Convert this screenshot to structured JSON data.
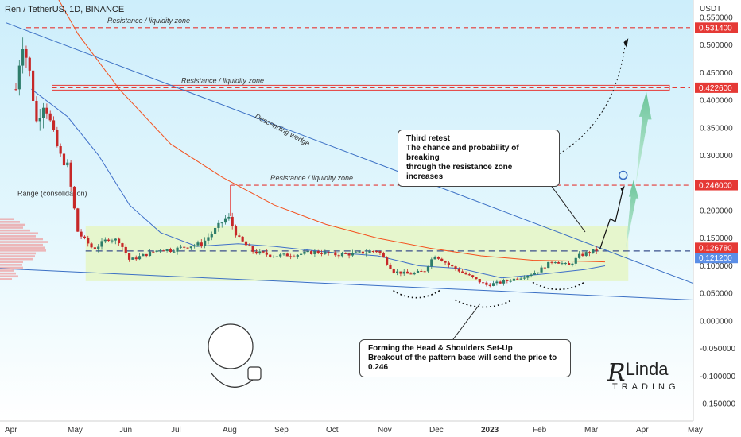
{
  "header": {
    "symbol_line": "Ren / TetherUS, 1D, BINANCE"
  },
  "brand": {
    "name_main": "Linda",
    "name_sub": "TRADING",
    "initial": "R"
  },
  "notes": {
    "third_retest": [
      "Third retest",
      "The chance and probability of breaking",
      "through the resistance zone increases"
    ],
    "hs_setup": [
      "Forming the Head & Shoulders Set-Up",
      "Breakout of the pattern base will send the price to 0.246"
    ]
  },
  "colors": {
    "background_top": "#cfeefa",
    "background_bottom": "#ffffff",
    "range_fill": "#e6f5c8",
    "resistance": "#e53935",
    "wedge": "#3a6fc4",
    "ma_red": "#f4511e",
    "ma_blue": "#3f6fc9",
    "candle_up": "#2e7d6a",
    "candle_down": "#c62828",
    "projection": "#7fd1ae",
    "volume_profile": "#f08080"
  },
  "chart_data": {
    "type": "candlestick",
    "title": "Ren / TetherUS, 1D, BINANCE",
    "ylabel": "USDT",
    "y_axis_unit": "USDT",
    "ylim": [
      -0.17,
      0.57
    ],
    "x_ticks": [
      "Apr",
      "May",
      "Jun",
      "Jul",
      "Aug",
      "Sep",
      "Oct",
      "Nov",
      "Dec",
      "2023",
      "Feb",
      "Mar",
      "Apr",
      "May"
    ],
    "y_ticks": [
      0.55,
      0.5,
      0.45,
      0.4,
      0.35,
      0.3,
      0.25,
      0.2,
      0.15,
      0.1,
      0.05,
      0.0,
      -0.05,
      -0.1,
      -0.15
    ],
    "y_tick_labels": [
      "0.550000",
      "0.500000",
      "0.450000",
      "0.400000",
      "0.350000",
      "0.300000",
      "0.250000",
      "0.200000",
      "0.150000",
      "0.100000",
      "0.050000",
      "0.000000",
      "-0.050000",
      "-0.100000",
      "-0.150000"
    ],
    "price_tags": [
      {
        "value": 0.5314,
        "label": "0.531400",
        "color": "#e53935"
      },
      {
        "value": 0.4226,
        "label": "0.422600",
        "color": "#e53935"
      },
      {
        "value": 0.246,
        "label": "0.246000",
        "color": "#e53935"
      },
      {
        "value": 0.12678,
        "label": "0.126780",
        "color": "#e53935"
      },
      {
        "value": 0.1212,
        "label": "0.121200",
        "color": "#5b8ee6"
      }
    ],
    "resistance_zones": [
      {
        "label": "Resistance / liquidity zone",
        "value": 0.5314,
        "start": "Apr"
      },
      {
        "label": "Resistance / liquidity zone",
        "value": 0.4226,
        "start": "Apr"
      },
      {
        "label": "Resistance / liquidity zone",
        "value": 0.246,
        "start": "Aug"
      }
    ],
    "range": {
      "label": "Range (consolidation)",
      "low": 0.072,
      "high": 0.172
    },
    "wedge": {
      "label": "Descending wedge"
    },
    "series": [
      {
        "name": "price",
        "points": [
          [
            0,
            0.42
          ],
          [
            0.12,
            0.51
          ],
          [
            0.25,
            0.46
          ],
          [
            0.4,
            0.36
          ],
          [
            0.55,
            0.4
          ],
          [
            0.75,
            0.33
          ],
          [
            0.85,
            0.3
          ],
          [
            1.0,
            0.28
          ],
          [
            1.2,
            0.16
          ],
          [
            1.5,
            0.13
          ],
          [
            1.8,
            0.15
          ],
          [
            2.0,
            0.145
          ],
          [
            2.2,
            0.11
          ],
          [
            2.5,
            0.12
          ],
          [
            2.8,
            0.13
          ],
          [
            3.0,
            0.128
          ],
          [
            3.3,
            0.135
          ],
          [
            3.6,
            0.14
          ],
          [
            3.9,
            0.17
          ],
          [
            4.1,
            0.19
          ],
          [
            4.3,
            0.15
          ],
          [
            4.6,
            0.125
          ],
          [
            5.0,
            0.118
          ],
          [
            5.4,
            0.12
          ],
          [
            5.8,
            0.125
          ],
          [
            6.2,
            0.12
          ],
          [
            6.6,
            0.122
          ],
          [
            7.0,
            0.128
          ],
          [
            7.3,
            0.09
          ],
          [
            7.6,
            0.085
          ],
          [
            7.9,
            0.09
          ],
          [
            8.1,
            0.12
          ],
          [
            8.4,
            0.1
          ],
          [
            8.8,
            0.08
          ],
          [
            9.1,
            0.065
          ],
          [
            9.4,
            0.07
          ],
          [
            9.8,
            0.08
          ],
          [
            10.1,
            0.09
          ],
          [
            10.4,
            0.11
          ],
          [
            10.7,
            0.1
          ],
          [
            10.9,
            0.118
          ],
          [
            11.1,
            0.125
          ],
          [
            11.3,
            0.13
          ]
        ]
      }
    ],
    "head_and_shoulders": {
      "label": "Forming the Head & Shoulders Set-Up",
      "target": 0.246
    }
  }
}
